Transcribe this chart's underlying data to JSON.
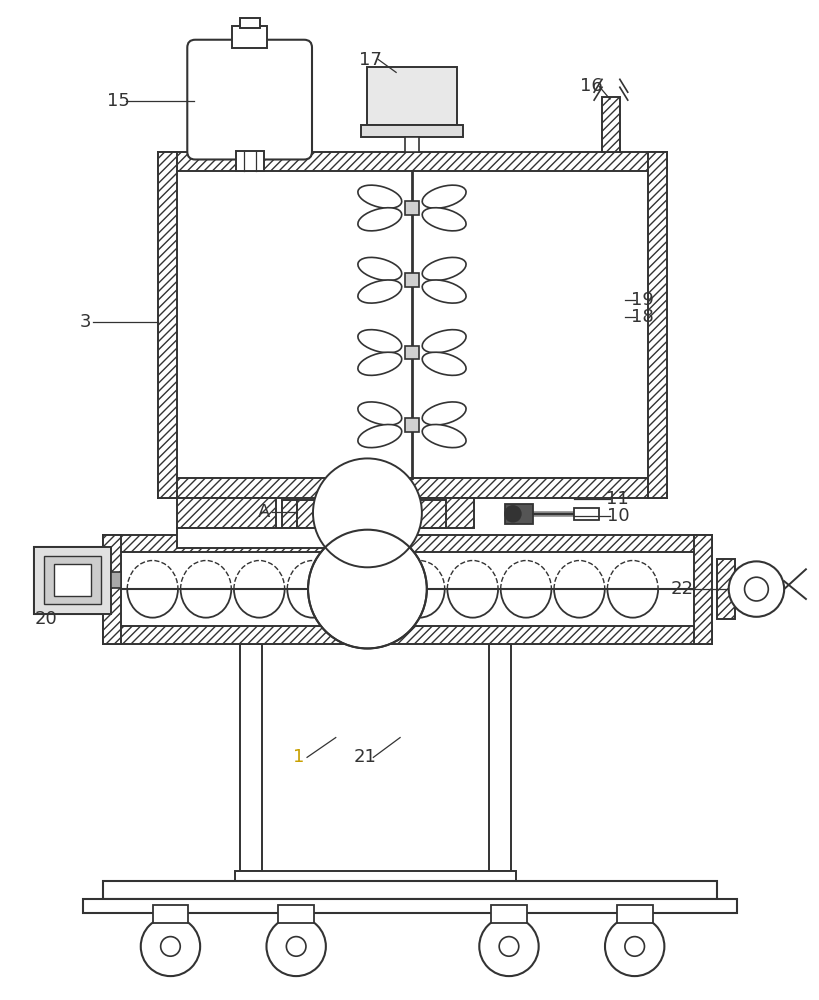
{
  "bg_color": "#ffffff",
  "line_color": "#333333",
  "label_color_gold": "#c8a000",
  "label_color_black": "#333333",
  "font_size": 13
}
